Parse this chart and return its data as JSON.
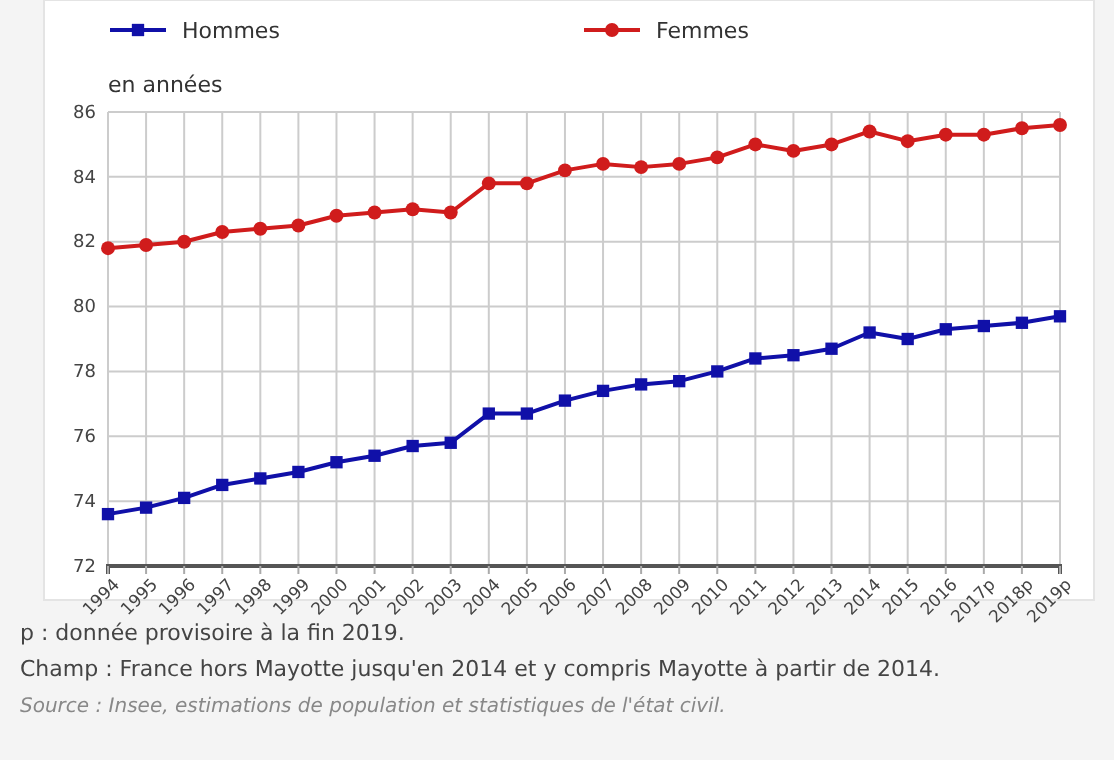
{
  "chart_data": {
    "type": "line",
    "ylabel": "en années",
    "categories": [
      "1994",
      "1995",
      "1996",
      "1997",
      "1998",
      "1999",
      "2000",
      "2001",
      "2002",
      "2003",
      "2004",
      "2005",
      "2006",
      "2007",
      "2008",
      "2009",
      "2010",
      "2011",
      "2012",
      "2013",
      "2014",
      "2015",
      "2016",
      "2017p",
      "2018p",
      "2019p"
    ],
    "series": [
      {
        "name": "Hommes",
        "color": "#1010a8",
        "marker": "square",
        "values": [
          73.6,
          73.8,
          74.1,
          74.5,
          74.7,
          74.9,
          75.2,
          75.4,
          75.7,
          75.8,
          76.7,
          76.7,
          77.1,
          77.4,
          77.6,
          77.7,
          78.0,
          78.4,
          78.5,
          78.7,
          79.2,
          79.0,
          79.3,
          79.4,
          79.5,
          79.7
        ]
      },
      {
        "name": "Femmes",
        "color": "#d01c1c",
        "marker": "circle",
        "values": [
          81.8,
          81.9,
          82.0,
          82.3,
          82.4,
          82.5,
          82.8,
          82.9,
          83.0,
          82.9,
          83.8,
          83.8,
          84.2,
          84.4,
          84.3,
          84.4,
          84.6,
          85.0,
          84.8,
          85.0,
          85.4,
          85.1,
          85.3,
          85.3,
          85.5,
          85.6
        ]
      }
    ],
    "ylim": [
      72,
      86
    ],
    "yticks": [
      72,
      74,
      76,
      78,
      80,
      82,
      84,
      86
    ],
    "grid": true,
    "legend": "top",
    "annotations": [
      "p : donnée provisoire à la fin 2019.",
      "Champ : France hors Mayotte jusqu'en 2014 et y compris Mayotte à partir de 2014.",
      "Source : Insee, estimations de population et statistiques de l'état civil."
    ]
  }
}
